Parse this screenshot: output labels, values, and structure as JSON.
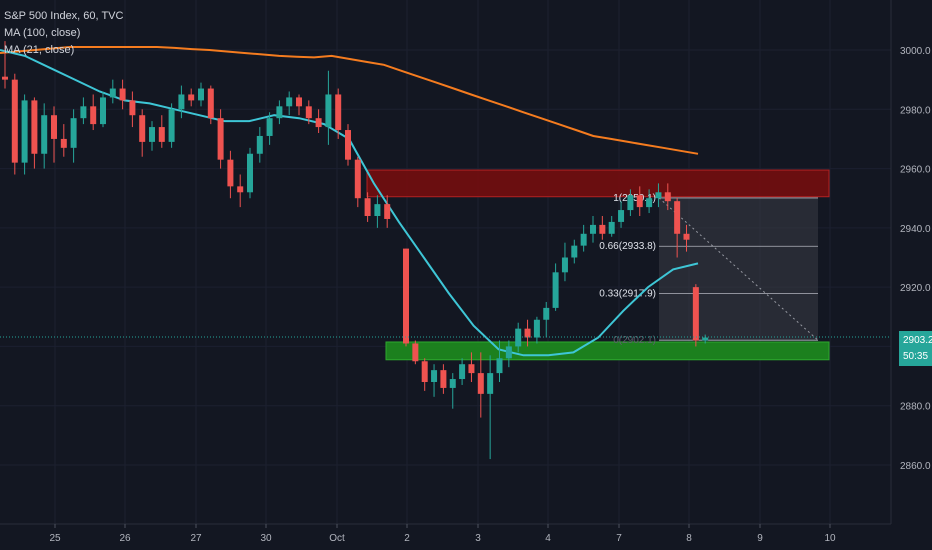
{
  "legend": {
    "title": "S&P 500 Index, 60, TVC",
    "ma100": "MA (100, close)",
    "ma21": "MA (21, close)"
  },
  "colors": {
    "background": "#131722",
    "up": "#26a69a",
    "down": "#ef5350",
    "ma100": "#f57c1f",
    "ma21": "#3ec6d6",
    "resistance": "#7a0d0d",
    "support": "#1e8c1e",
    "axis_text": "#b2b5be",
    "last_price_bg": "#26a69a"
  },
  "price_axis": {
    "ticks": [
      "3000.0",
      "2980.0",
      "2960.0",
      "2940.0",
      "2920.0",
      "2900.0",
      "2880.0",
      "2860.0"
    ],
    "last_price": "2903.2",
    "countdown": "50:35"
  },
  "time_axis": {
    "ticks": [
      "25",
      "26",
      "27",
      "30",
      "Oct",
      "2",
      "3",
      "4",
      "7",
      "8",
      "9",
      "10"
    ]
  },
  "fib_levels": {
    "labels": [
      "1(2950.1)",
      "0.66(2933.8)",
      "0.33(2917.9)",
      "0(2902.1)"
    ]
  },
  "chart_data": {
    "type": "candlestick",
    "title": "S&P 500 Index, 60, TVC",
    "ylim": [
      2850,
      3015
    ],
    "candles": [
      [
        2991,
        3003,
        2987,
        2990
      ],
      [
        2990,
        2992,
        2958,
        2962
      ],
      [
        2962,
        2985,
        2958,
        2983
      ],
      [
        2983,
        2984,
        2960,
        2965
      ],
      [
        2965,
        2982,
        2960,
        2978
      ],
      [
        2978,
        2981,
        2962,
        2970
      ],
      [
        2970,
        2975,
        2964,
        2967
      ],
      [
        2967,
        2980,
        2962,
        2977
      ],
      [
        2977,
        2984,
        2975,
        2981
      ],
      [
        2981,
        2985,
        2973,
        2975
      ],
      [
        2975,
        2986,
        2974,
        2984
      ],
      [
        2984,
        2990,
        2982,
        2987
      ],
      [
        2987,
        2990,
        2980,
        2983
      ],
      [
        2983,
        2986,
        2974,
        2978
      ],
      [
        2978,
        2980,
        2964,
        2969
      ],
      [
        2969,
        2976,
        2966,
        2974
      ],
      [
        2974,
        2978,
        2967,
        2969
      ],
      [
        2969,
        2982,
        2967,
        2980
      ],
      [
        2980,
        2988,
        2977,
        2985
      ],
      [
        2985,
        2987,
        2981,
        2983
      ],
      [
        2983,
        2989,
        2981,
        2987
      ],
      [
        2987,
        2988,
        2975,
        2977
      ],
      [
        2977,
        2980,
        2960,
        2963
      ],
      [
        2963,
        2966,
        2950,
        2954
      ],
      [
        2954,
        2958,
        2947,
        2952
      ],
      [
        2952,
        2967,
        2950,
        2965
      ],
      [
        2965,
        2974,
        2962,
        2971
      ],
      [
        2971,
        2979,
        2968,
        2977
      ],
      [
        2977,
        2983,
        2975,
        2981
      ],
      [
        2981,
        2986,
        2978,
        2984
      ],
      [
        2984,
        2985,
        2978,
        2981
      ],
      [
        2981,
        2983,
        2975,
        2977
      ],
      [
        2977,
        2980,
        2972,
        2974
      ],
      [
        2974,
        2993,
        2968,
        2985
      ],
      [
        2985,
        2987,
        2970,
        2973
      ],
      [
        2973,
        2975,
        2961,
        2963
      ],
      [
        2963,
        2964,
        2947,
        2950
      ],
      [
        2950,
        2952,
        2942,
        2944
      ],
      [
        2944,
        2951,
        2940,
        2948
      ],
      [
        2948,
        2951,
        2940,
        2943
      ],
      [
        2933,
        2933,
        2900,
        2901
      ],
      [
        2901,
        2902,
        2894,
        2895
      ],
      [
        2895,
        2896,
        2885,
        2888
      ],
      [
        2888,
        2894,
        2883,
        2892
      ],
      [
        2892,
        2894,
        2884,
        2886
      ],
      [
        2886,
        2891,
        2879,
        2889
      ],
      [
        2889,
        2896,
        2887,
        2894
      ],
      [
        2894,
        2898,
        2888,
        2891
      ],
      [
        2891,
        2898,
        2876,
        2884
      ],
      [
        2884,
        2897,
        2862,
        2891
      ],
      [
        2891,
        2902,
        2888,
        2896
      ],
      [
        2896,
        2902,
        2893,
        2900
      ],
      [
        2900,
        2908,
        2898,
        2906
      ],
      [
        2906,
        2909,
        2900,
        2903
      ],
      [
        2903,
        2910,
        2901,
        2909
      ],
      [
        2909,
        2915,
        2903,
        2913
      ],
      [
        2913,
        2928,
        2912,
        2925
      ],
      [
        2925,
        2935,
        2922,
        2930
      ],
      [
        2930,
        2936,
        2928,
        2934
      ],
      [
        2934,
        2941,
        2932,
        2938
      ],
      [
        2938,
        2944,
        2935,
        2941
      ],
      [
        2941,
        2944,
        2936,
        2938
      ],
      [
        2938,
        2944,
        2937,
        2942
      ],
      [
        2942,
        2949,
        2940,
        2946
      ],
      [
        2946,
        2953,
        2944,
        2951
      ],
      [
        2951,
        2954,
        2944,
        2947
      ],
      [
        2947,
        2953,
        2945,
        2950
      ],
      [
        2950,
        2955,
        2947,
        2952
      ],
      [
        2952,
        2955,
        2946,
        2949
      ],
      [
        2949,
        2950,
        2930,
        2938
      ],
      [
        2938,
        2941,
        2932,
        2936
      ],
      [
        2920,
        2921,
        2900,
        2902
      ],
      [
        2902,
        2904,
        2901,
        2903
      ]
    ],
    "ma100": [
      2999,
      2999.5,
      3000,
      3000.5,
      3001,
      3001,
      3001,
      3001,
      3001,
      3001,
      3000.7,
      3000.3,
      3000,
      2999.5,
      2999,
      2998.5,
      2998,
      2997.7,
      2997.5,
      2998,
      2997,
      2996,
      2995,
      2993,
      2991,
      2989,
      2987,
      2985,
      2983,
      2981,
      2979,
      2977,
      2975,
      2973,
      2971,
      2970,
      2969,
      2968,
      2967,
      2966,
      2965
    ],
    "ma21": [
      3000,
      2998,
      2994,
      2990,
      2986,
      2983,
      2982,
      2980,
      2978,
      2976,
      2976,
      2978,
      2977,
      2975,
      2970,
      2955,
      2942,
      2930,
      2918,
      2907,
      2899,
      2897,
      2897,
      2898,
      2903,
      2912,
      2920,
      2926,
      2928
    ]
  }
}
